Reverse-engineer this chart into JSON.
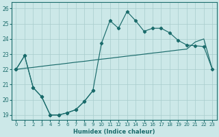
{
  "xlabel": "Humidex (Indice chaleur)",
  "bg_color": "#cce8e8",
  "line_color": "#1a6b6b",
  "grid_color": "#a8cccc",
  "xlim": [
    -0.5,
    23.5
  ],
  "ylim": [
    18.7,
    26.4
  ],
  "yticks": [
    19,
    20,
    21,
    22,
    23,
    24,
    25,
    26
  ],
  "xticks": [
    0,
    1,
    2,
    3,
    4,
    5,
    6,
    7,
    8,
    9,
    10,
    11,
    12,
    13,
    14,
    15,
    16,
    17,
    18,
    19,
    20,
    21,
    22,
    23
  ],
  "line1_x": [
    0,
    1,
    2,
    3,
    4,
    5,
    6,
    7,
    8,
    9
  ],
  "line1_y": [
    22.0,
    22.9,
    20.8,
    20.2,
    19.0,
    19.0,
    19.15,
    19.35,
    19.9,
    20.6
  ],
  "line2_x": [
    0,
    1,
    2,
    3,
    4,
    5,
    6,
    7,
    8,
    9,
    10,
    11,
    12,
    13,
    14,
    15,
    16,
    17,
    18,
    19,
    20,
    21,
    22,
    23
  ],
  "line2_y": [
    22.0,
    22.07,
    22.13,
    22.2,
    22.27,
    22.33,
    22.4,
    22.47,
    22.53,
    22.6,
    22.67,
    22.73,
    22.8,
    22.87,
    22.93,
    23.0,
    23.07,
    23.13,
    23.2,
    23.27,
    23.33,
    23.8,
    24.0,
    22.0
  ],
  "line3_x": [
    0,
    1,
    2,
    3,
    4,
    5,
    6,
    7,
    8,
    9,
    10,
    11,
    12,
    13,
    14,
    15,
    16,
    17,
    18,
    19,
    20,
    21,
    22,
    23
  ],
  "line3_y": [
    22.0,
    22.9,
    20.8,
    20.2,
    19.0,
    19.0,
    19.15,
    19.35,
    19.9,
    20.6,
    23.7,
    25.2,
    24.7,
    25.8,
    25.2,
    24.5,
    24.7,
    24.7,
    24.4,
    23.9,
    23.6,
    23.55,
    23.5,
    22.0
  ]
}
